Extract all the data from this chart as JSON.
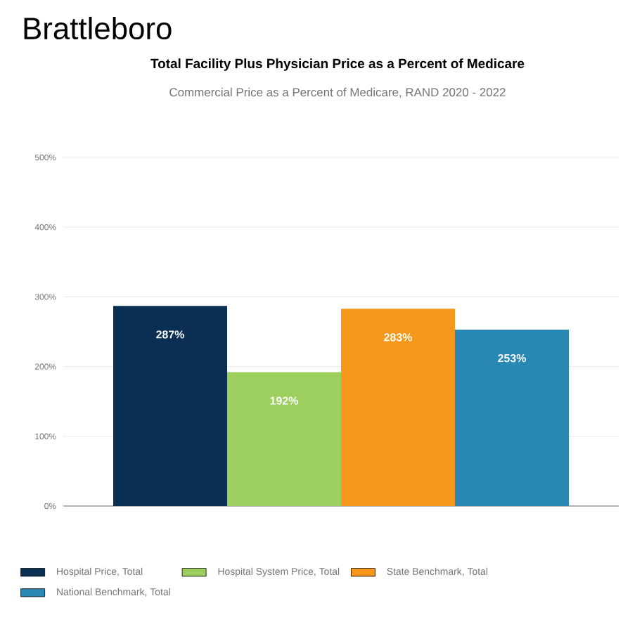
{
  "chart_data": {
    "type": "bar",
    "title": "Brattleboro",
    "subtitle": "Total Facility Plus Physician Price as a Percent of Medicare",
    "annotations": [
      "Commercial Price as a Percent of Medicare, RAND 2020 - 2022"
    ],
    "categories": [
      null
    ],
    "series": [
      {
        "name": "Hospital Price, Total",
        "color": "#0b2f52",
        "values": [
          287
        ],
        "value_labels": [
          "287%"
        ]
      },
      {
        "name": "Hospital System Price, Total",
        "color": "#9dcf5e",
        "values": [
          192
        ],
        "value_labels": [
          "192%"
        ]
      },
      {
        "name": "State Benchmark, Total",
        "color": "#f7981d",
        "values": [
          283
        ],
        "value_labels": [
          "283%"
        ]
      },
      {
        "name": "National Benchmark, Total",
        "color": "#2a88b5",
        "values": [
          253
        ],
        "value_labels": [
          "253%"
        ]
      }
    ],
    "ylim": [
      0,
      500
    ],
    "yticks": [
      {
        "value": 0,
        "label": "0%"
      },
      {
        "value": 100,
        "label": "100%"
      },
      {
        "value": 200,
        "label": "200%"
      },
      {
        "value": 300,
        "label": "300%"
      },
      {
        "value": 400,
        "label": "400%"
      },
      {
        "value": 500,
        "label": "500%"
      }
    ],
    "grid": "y",
    "legend": "bottom"
  }
}
